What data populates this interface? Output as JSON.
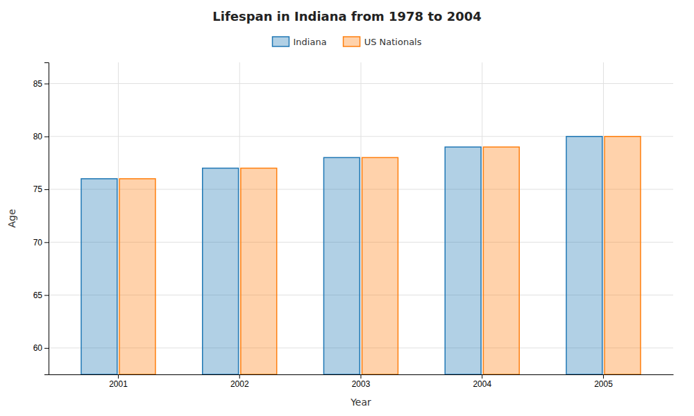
{
  "chart_data": {
    "type": "bar",
    "title": "Lifespan in Indiana from 1978 to 2004",
    "xlabel": "Year",
    "ylabel": "Age",
    "categories": [
      "2001",
      "2002",
      "2003",
      "2004",
      "2005"
    ],
    "series": [
      {
        "name": "Indiana",
        "values": [
          76,
          77,
          78,
          79,
          80
        ]
      },
      {
        "name": "US Nationals",
        "values": [
          76,
          77,
          78,
          79,
          80
        ]
      }
    ],
    "ylim": [
      57.5,
      87
    ],
    "yticks": [
      60,
      65,
      70,
      75,
      80,
      85
    ],
    "grid": true,
    "legend": "top"
  }
}
